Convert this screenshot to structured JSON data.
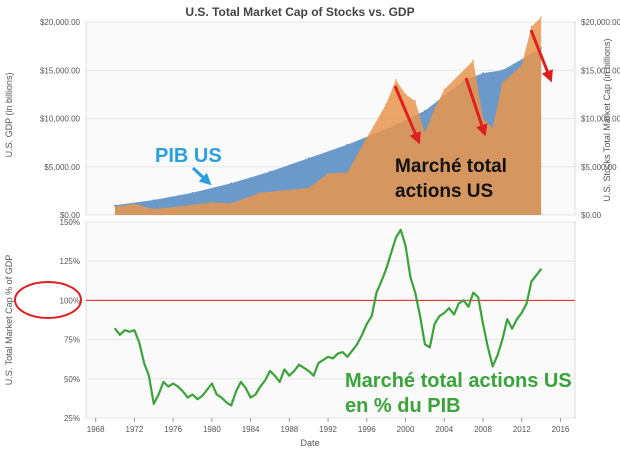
{
  "chart_data": [
    {
      "type": "area",
      "title": "U.S. Total Market Cap of Stocks vs. GDP",
      "ylabel": "U.S. GDP (in billions)",
      "ylabel_right": "U.S. Stocks Total Market Cap (in billions)",
      "ylim": [
        0,
        20000
      ],
      "yticks": [
        "$0.00",
        "$5,000.00",
        "$10,000.00",
        "$15,000.00",
        "$20,000.00"
      ],
      "grid": true,
      "series": [
        {
          "name": "PIB US",
          "color": "#5b8fc4",
          "x": [
            1970,
            1974,
            1978,
            1982,
            1986,
            1990,
            1994,
            1998,
            2002,
            2006,
            2008,
            2010,
            2014
          ],
          "values": [
            1000,
            1550,
            2300,
            3300,
            4500,
            5900,
            7300,
            8900,
            10800,
            13900,
            14700,
            15000,
            17300
          ]
        },
        {
          "name": "Marché total actions US",
          "color": "#e8954d",
          "x": [
            1970,
            1972,
            1974,
            1975,
            1980,
            1982,
            1985,
            1987,
            1990,
            1992,
            1994,
            1996,
            1998,
            1999,
            2000,
            2001,
            2002,
            2003,
            2004,
            2007,
            2008,
            2009,
            2010,
            2012,
            2013,
            2014
          ],
          "values": [
            850,
            1150,
            600,
            700,
            1300,
            1200,
            2300,
            2500,
            2800,
            4300,
            4400,
            8000,
            11500,
            14000,
            12500,
            11800,
            8500,
            11000,
            13000,
            16000,
            10000,
            9000,
            13700,
            15500,
            19500,
            20500
          ]
        }
      ],
      "annotations": [
        "PIB US",
        "Marché total actions US"
      ]
    },
    {
      "type": "line",
      "xlabel": "Date",
      "ylabel": "U.S. Total Market Cap % of GDP",
      "ylim": [
        25,
        150
      ],
      "yticks": [
        "25%",
        "50%",
        "75%",
        "100%",
        "125%",
        "150%"
      ],
      "xticks": [
        "1968",
        "1972",
        "1976",
        "1980",
        "1984",
        "1988",
        "1992",
        "1996",
        "2000",
        "2004",
        "2008",
        "2012",
        "2016"
      ],
      "reference_line": 100,
      "series": [
        {
          "name": "Marché total actions US en % du PIB",
          "color": "#3aa33a",
          "x": [
            1970,
            1970.5,
            1971,
            1971.5,
            1972,
            1972.5,
            1973,
            1973.5,
            1974,
            1974.5,
            1975,
            1975.5,
            1976,
            1976.5,
            1977,
            1977.5,
            1978,
            1978.5,
            1979,
            1980,
            1980.5,
            1981,
            1981.5,
            1982,
            1982.5,
            1983,
            1983.5,
            1984,
            1984.5,
            1985,
            1985.5,
            1986,
            1986.5,
            1987,
            1987.5,
            1988,
            1988.5,
            1989,
            1989.5,
            1990,
            1990.5,
            1991,
            1991.5,
            1992,
            1992.5,
            1993,
            1993.5,
            1994,
            1994.5,
            1995,
            1995.5,
            1996,
            1996.5,
            1997,
            1997.5,
            1998,
            1998.5,
            1999,
            1999.5,
            2000,
            2000.5,
            2001,
            2001.5,
            2002,
            2002.5,
            2003,
            2003.5,
            2004,
            2004.5,
            2005,
            2005.5,
            2006,
            2006.5,
            2007,
            2007.5,
            2008,
            2008.5,
            2009,
            2009.5,
            2010,
            2010.5,
            2011,
            2011.5,
            2012,
            2012.5,
            2013,
            2013.5,
            2014
          ],
          "values": [
            82,
            78,
            81,
            80,
            81,
            73,
            60,
            52,
            34,
            40,
            48,
            45,
            47,
            45,
            42,
            38,
            40,
            37,
            39,
            47,
            40,
            38,
            35,
            33,
            42,
            48,
            44,
            38,
            40,
            45,
            49,
            55,
            52,
            48,
            56,
            52,
            55,
            59,
            57,
            55,
            52,
            60,
            62,
            64,
            63,
            66,
            67,
            64,
            68,
            72,
            78,
            85,
            90,
            105,
            112,
            120,
            130,
            140,
            145,
            135,
            115,
            105,
            90,
            72,
            70,
            85,
            90,
            92,
            95,
            91,
            98,
            100,
            96,
            105,
            102,
            85,
            70,
            58,
            65,
            75,
            88,
            82,
            88,
            92,
            98,
            112,
            116,
            120
          ]
        }
      ],
      "annotations": [
        "Marché total actions US",
        "en % du PIB"
      ]
    }
  ]
}
